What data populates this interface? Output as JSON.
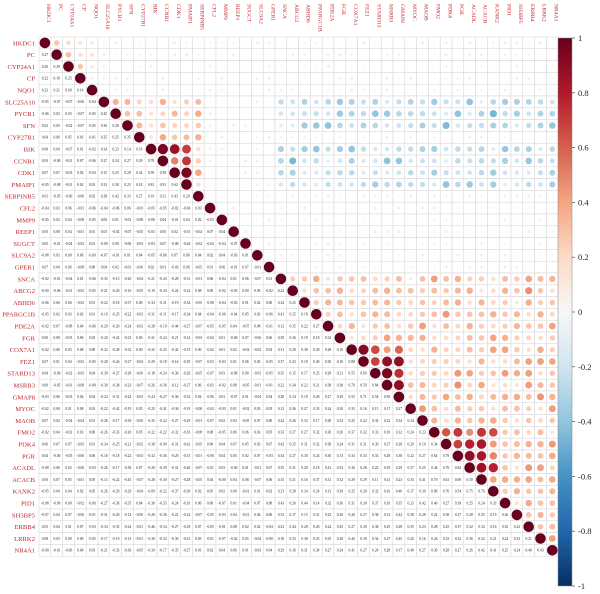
{
  "chart_data": {
    "type": "heatmap",
    "subtype": "correlation-matrix",
    "layout": "upper-circles lower-numbers",
    "genes": [
      "HKDC1",
      "PC",
      "CYP24A1",
      "CP",
      "NQO1",
      "SLC25A10",
      "PYCR1",
      "SFN",
      "CYP27B1",
      "BIK",
      "CCNB1",
      "CDK1",
      "PMAIP1",
      "SERPINB5",
      "CFL2",
      "MMP9",
      "REEP1",
      "SUGCT",
      "SLC9A2",
      "GPER1",
      "SNCA",
      "ABCG2",
      "ABHD6",
      "PPARGC1B",
      "PDE2A",
      "FGR",
      "COX7A1",
      "FEZ1",
      "STARD13",
      "MSRB3",
      "GMAP8",
      "MYOC",
      "MAOB",
      "FMO2",
      "PDK4",
      "PGR",
      "ACADL",
      "ACACB",
      "KANK2",
      "PID1",
      "SH3BP5",
      "ERBB4",
      "LRRK2",
      "NR4A1"
    ],
    "label_color": "#c0282c",
    "legend": {
      "ticks": [
        "1",
        "0.8",
        "0.6",
        "0.4",
        "0.2",
        "0",
        "-0.2",
        "-0.4",
        "-0.6",
        "-0.8",
        "-1"
      ],
      "range": [
        -1,
        1
      ],
      "colors": [
        "#67001f",
        "#b2182b",
        "#d6604d",
        "#f4a582",
        "#fddbc7",
        "#f7f7f7",
        "#d1e5f0",
        "#92c5de",
        "#4393c3",
        "#2166ac",
        "#053061"
      ]
    },
    "blocks": [
      {
        "group": [
          0,
          1,
          2,
          3,
          4
        ],
        "r": 0.2
      },
      {
        "group": [
          5,
          6,
          7,
          8,
          9,
          10,
          11,
          12,
          13
        ],
        "r": 0.3
      },
      {
        "group": [
          9,
          10,
          11,
          12
        ],
        "r": 0.55
      },
      {
        "group": [
          20,
          21,
          22,
          23,
          24,
          25,
          26,
          27,
          28,
          29,
          30,
          31,
          32,
          33,
          34,
          35,
          36,
          37,
          38,
          39,
          40,
          41,
          42,
          43
        ],
        "r": 0.3
      },
      {
        "group": [
          26,
          27,
          28,
          29,
          30
        ],
        "r": 0.45
      },
      {
        "group": [
          33,
          34,
          35,
          36,
          37,
          38
        ],
        "r": 0.35
      }
    ],
    "anti_blocks": [
      {
        "rows": [
          5,
          6,
          7,
          9,
          10,
          11,
          12
        ],
        "cols": [
          20,
          21,
          22,
          23,
          24,
          25,
          26,
          27,
          28,
          29,
          30,
          31,
          32,
          33,
          34,
          35,
          36,
          37,
          38,
          39,
          40,
          41,
          42,
          43
        ],
        "r": -0.3
      }
    ]
  }
}
